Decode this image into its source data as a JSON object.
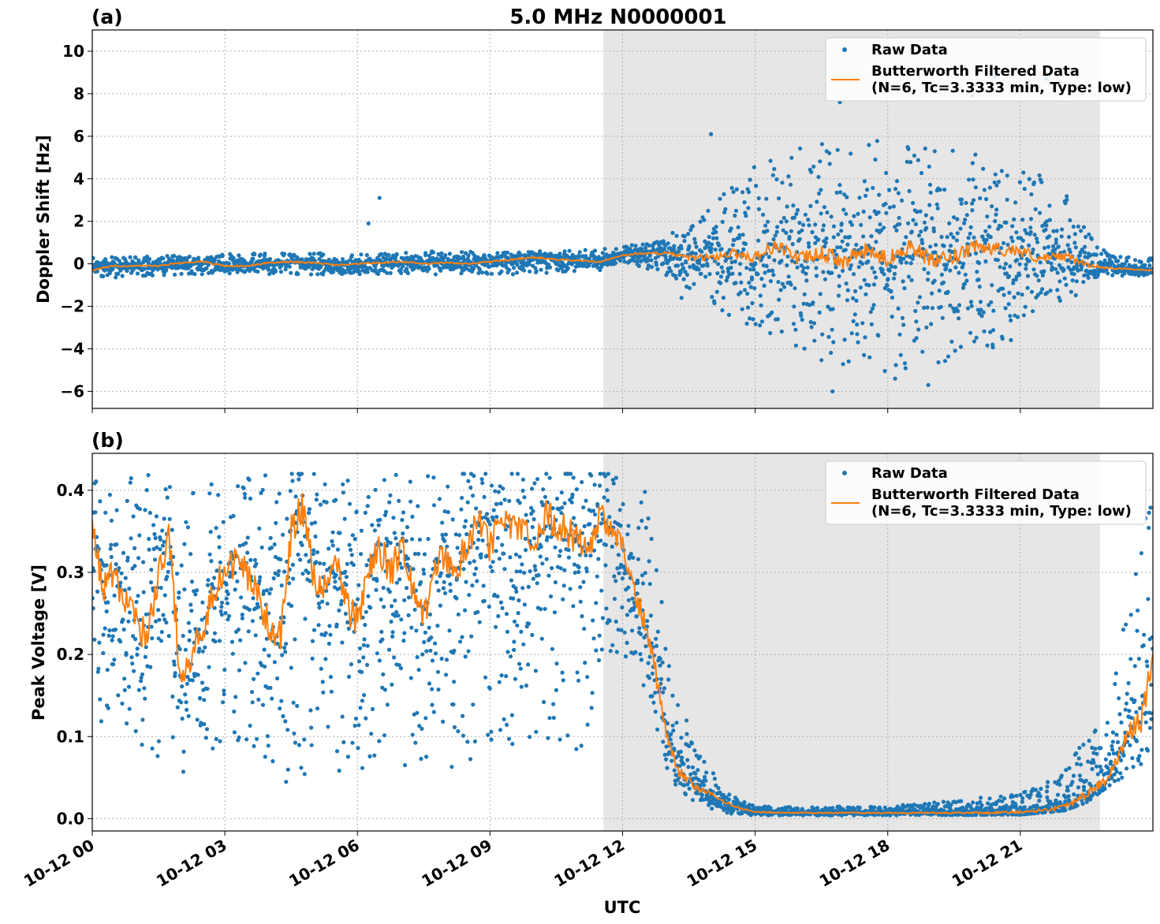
{
  "figure": {
    "title": "5.0 MHz N0000001",
    "xlabel": "UTC"
  },
  "colors": {
    "raw": "#1f77b4",
    "filtered": "#ff7f0e",
    "shade": "#e6e6e6",
    "grid": "#b0b0b0"
  },
  "chart_data": [
    {
      "type": "scatter",
      "panel_label": "(a)",
      "ylabel": "Doppler Shift [Hz]",
      "xlim": [
        "2024-10-12 00:00",
        "2024-10-12 24:00"
      ],
      "ylim": [
        -6.8,
        11.0
      ],
      "y_ticks": [
        -6,
        -4,
        -2,
        0,
        2,
        4,
        6,
        8,
        10
      ],
      "y_tick_labels": [
        "−6",
        "−4",
        "−2",
        "0",
        "2",
        "4",
        "6",
        "8",
        "10"
      ],
      "x_ticks": [
        "2024-10-12 00:00",
        "2024-10-12 03:00",
        "2024-10-12 06:00",
        "2024-10-12 09:00",
        "2024-10-12 12:00",
        "2024-10-12 15:00",
        "2024-10-12 18:00",
        "2024-10-12 21:00"
      ],
      "shaded_region": [
        "2024-10-12 11:34",
        "2024-10-12 22:48"
      ],
      "grid": true,
      "legend": {
        "placement": "upper-right",
        "entries": [
          "Raw Data",
          "Butterworth Filtered Data\n(N=6, Tc=3.3333 min, Type: low)"
        ]
      },
      "series": [
        {
          "name": "Raw Data",
          "style": "points",
          "envelope_hours": [
            0,
            2,
            4,
            6,
            8,
            10,
            11.5,
            12,
            13,
            14,
            15,
            16,
            17,
            18,
            19,
            20,
            21,
            22,
            22.5,
            23,
            24
          ],
          "envelope_upper": [
            0.3,
            0.4,
            0.5,
            0.5,
            0.6,
            0.6,
            0.7,
            0.8,
            1.3,
            2.8,
            4.6,
            5.5,
            5.8,
            5.8,
            5.6,
            5.3,
            4.8,
            3.5,
            1.6,
            0.5,
            0.3
          ],
          "envelope_lower": [
            -0.7,
            -0.5,
            -0.5,
            -0.5,
            -0.5,
            -0.5,
            -0.3,
            0.1,
            -0.6,
            -1.8,
            -3.4,
            -4.3,
            -4.9,
            -5.1,
            -4.8,
            -4.3,
            -3.5,
            -2.4,
            -1.1,
            -0.6,
            -0.6
          ],
          "outliers": [
            {
              "x": "2024-10-12 06:30",
              "y": 3.1
            },
            {
              "x": "2024-10-12 06:15",
              "y": 1.9
            },
            {
              "x": "2024-10-12 14:00",
              "y": 6.1
            },
            {
              "x": "2024-10-12 16:55",
              "y": 7.6
            },
            {
              "x": "2024-10-12 19:55",
              "y": 7.9
            },
            {
              "x": "2024-10-12 20:25",
              "y": 8.8
            },
            {
              "x": "2024-10-12 17:50",
              "y": 9.9
            },
            {
              "x": "2024-10-12 21:35",
              "y": 8.7
            },
            {
              "x": "2024-10-12 16:45",
              "y": -6.0
            },
            {
              "x": "2024-10-12 18:55",
              "y": -5.7
            },
            {
              "x": "2024-10-12 18:10",
              "y": -5.4
            },
            {
              "x": "2024-10-12 13:20",
              "y": -1.6
            }
          ]
        },
        {
          "name": "Butterworth Filtered Data\n(N=6, Tc=3.3333 min, Type: low)",
          "style": "line",
          "x_hours": [
            0,
            0.5,
            1,
            1.5,
            2,
            2.5,
            3,
            3.5,
            4,
            4.5,
            5,
            5.5,
            6,
            6.5,
            7,
            7.5,
            8,
            8.5,
            9,
            9.5,
            10,
            10.5,
            11,
            11.5,
            12,
            12.5,
            13,
            13.5,
            14,
            14.5,
            15,
            15.5,
            16,
            16.5,
            17,
            17.5,
            18,
            18.5,
            19,
            19.5,
            20,
            20.5,
            21,
            21.5,
            22,
            22.5,
            23,
            23.5,
            24
          ],
          "y": [
            -0.3,
            -0.1,
            -0.1,
            -0.1,
            0.05,
            0.1,
            -0.1,
            -0.1,
            0.05,
            0.1,
            0.05,
            -0.05,
            0.0,
            0.05,
            0.1,
            0.0,
            0.05,
            0.0,
            0.1,
            0.2,
            0.3,
            0.2,
            0.15,
            0.1,
            0.4,
            0.5,
            0.5,
            0.3,
            0.3,
            0.5,
            0.3,
            0.9,
            0.2,
            0.5,
            0.1,
            0.6,
            0.2,
            0.9,
            0.1,
            0.3,
            0.8,
            0.7,
            0.6,
            0.2,
            0.4,
            -0.05,
            -0.2,
            -0.25,
            -0.3
          ]
        }
      ]
    },
    {
      "type": "scatter",
      "panel_label": "(b)",
      "ylabel": "Peak Voltage [V]",
      "xlim": [
        "2024-10-12 00:00",
        "2024-10-12 24:00"
      ],
      "ylim": [
        -0.015,
        0.445
      ],
      "y_ticks": [
        0.0,
        0.1,
        0.2,
        0.3,
        0.4
      ],
      "y_tick_labels": [
        "0.0",
        "0.1",
        "0.2",
        "0.3",
        "0.4"
      ],
      "x_ticks": [
        "2024-10-12 00:00",
        "2024-10-12 03:00",
        "2024-10-12 06:00",
        "2024-10-12 09:00",
        "2024-10-12 12:00",
        "2024-10-12 15:00",
        "2024-10-12 18:00",
        "2024-10-12 21:00"
      ],
      "x_tick_labels": [
        "10-12 00",
        "10-12 03",
        "10-12 06",
        "10-12 09",
        "10-12 12",
        "10-12 15",
        "10-12 18",
        "10-12 21"
      ],
      "shaded_region": [
        "2024-10-12 11:34",
        "2024-10-12 22:48"
      ],
      "grid": true,
      "legend": {
        "placement": "upper-right",
        "entries": [
          "Raw Data",
          "Butterworth Filtered Data\n(N=6, Tc=3.3333 min, Type: low)"
        ]
      },
      "series": [
        {
          "name": "Raw Data",
          "style": "points",
          "envelope_hours": [
            0,
            0.5,
            1,
            1.5,
            2,
            2.5,
            3,
            4,
            5,
            6,
            7,
            8,
            9,
            10,
            11,
            11.8,
            12.2,
            12.5,
            12.8,
            13.2,
            13.6,
            14,
            14.5,
            15,
            18,
            21,
            22,
            22.5,
            23,
            23.3,
            23.6,
            24
          ],
          "envelope_upper": [
            0.41,
            0.415,
            0.42,
            0.42,
            0.41,
            0.41,
            0.42,
            0.42,
            0.42,
            0.41,
            0.42,
            0.42,
            0.42,
            0.42,
            0.42,
            0.42,
            0.41,
            0.4,
            0.3,
            0.16,
            0.1,
            0.06,
            0.03,
            0.015,
            0.015,
            0.03,
            0.06,
            0.1,
            0.14,
            0.22,
            0.32,
            0.4
          ],
          "envelope_lower": [
            0.1,
            0.12,
            0.06,
            0.05,
            0.05,
            0.08,
            0.09,
            0.04,
            0.05,
            0.06,
            0.06,
            0.06,
            0.08,
            0.1,
            0.08,
            0.18,
            0.2,
            0.15,
            0.08,
            0.04,
            0.02,
            0.01,
            0.005,
            0.004,
            0.004,
            0.005,
            0.01,
            0.02,
            0.04,
            0.05,
            0.06,
            0.08
          ],
          "outliers": []
        },
        {
          "name": "Butterworth Filtered Data\n(N=6, Tc=3.3333 min, Type: low)",
          "style": "line",
          "x_hours": [
            0,
            0.25,
            0.5,
            0.75,
            1,
            1.25,
            1.5,
            1.75,
            2,
            2.25,
            2.5,
            2.75,
            3,
            3.25,
            3.5,
            3.75,
            4,
            4.25,
            4.5,
            4.75,
            5,
            5.25,
            5.5,
            5.75,
            6,
            6.25,
            6.5,
            6.75,
            7,
            7.25,
            7.5,
            7.75,
            8,
            8.25,
            8.5,
            8.75,
            9,
            9.25,
            9.5,
            9.75,
            10,
            10.25,
            10.5,
            10.75,
            11,
            11.25,
            11.5,
            11.75,
            12,
            12.25,
            12.5,
            12.75,
            13,
            13.25,
            13.5,
            13.75,
            14,
            14.5,
            15,
            16,
            17,
            18,
            19,
            20,
            21,
            21.5,
            22,
            22.5,
            23,
            23.25,
            23.5,
            23.75,
            24
          ],
          "y": [
            0.35,
            0.28,
            0.3,
            0.26,
            0.24,
            0.22,
            0.3,
            0.34,
            0.17,
            0.2,
            0.22,
            0.28,
            0.3,
            0.31,
            0.3,
            0.27,
            0.24,
            0.22,
            0.35,
            0.38,
            0.3,
            0.28,
            0.32,
            0.26,
            0.24,
            0.3,
            0.33,
            0.3,
            0.33,
            0.28,
            0.25,
            0.3,
            0.32,
            0.3,
            0.34,
            0.36,
            0.33,
            0.37,
            0.35,
            0.36,
            0.33,
            0.37,
            0.36,
            0.35,
            0.34,
            0.33,
            0.37,
            0.35,
            0.33,
            0.28,
            0.24,
            0.18,
            0.1,
            0.06,
            0.045,
            0.035,
            0.03,
            0.015,
            0.008,
            0.007,
            0.007,
            0.007,
            0.007,
            0.007,
            0.008,
            0.01,
            0.015,
            0.03,
            0.05,
            0.08,
            0.11,
            0.12,
            0.2
          ]
        }
      ]
    }
  ]
}
